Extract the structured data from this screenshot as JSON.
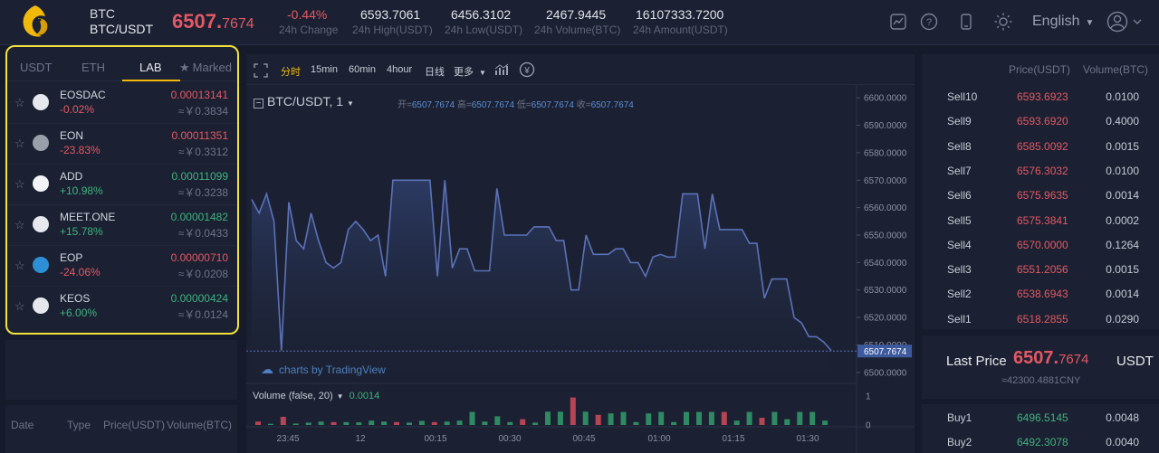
{
  "header": {
    "coin": "BTC",
    "pair": "BTC/USDT",
    "price_int": "6507.",
    "price_dec": "7674",
    "stats": [
      {
        "value": "-0.44%",
        "label": "24h Change",
        "red": true
      },
      {
        "value": "6593.7061",
        "label": "24h High(USDT)"
      },
      {
        "value": "6456.3102",
        "label": "24h Low(USDT)"
      },
      {
        "value": "2467.9445",
        "label": "24h Volume(BTC)"
      },
      {
        "value": "16107333.7200",
        "label": "24h Amount(USDT)"
      }
    ],
    "language": "English",
    "icons": [
      "chart-icon",
      "help-icon",
      "mobile-icon",
      "theme-sun-icon"
    ]
  },
  "market_tabs": {
    "usdt": "USDT",
    "eth": "ETH",
    "lab": "LAB",
    "marked": "Marked"
  },
  "coins": [
    {
      "name": "EOSDAC",
      "change": "-0.02%",
      "dir": "down",
      "price": "0.00013141",
      "cny": "≈￥0.3834"
    },
    {
      "name": "EON",
      "change": "-23.83%",
      "dir": "down",
      "price": "0.00011351",
      "cny": "≈￥0.3312"
    },
    {
      "name": "ADD",
      "change": "+10.98%",
      "dir": "up",
      "price": "0.00011099",
      "cny": "≈￥0.3238"
    },
    {
      "name": "MEET.ONE",
      "change": "+15.78%",
      "dir": "up",
      "price": "0.00001482",
      "cny": "≈￥0.0433"
    },
    {
      "name": "EOP",
      "change": "-24.06%",
      "dir": "down",
      "price": "0.00000710",
      "cny": "≈￥0.0208"
    },
    {
      "name": "KEOS",
      "change": "+6.00%",
      "dir": "up",
      "price": "0.00000424",
      "cny": "≈￥0.0124"
    }
  ],
  "trade_history": {
    "date": "Date",
    "type": "Type",
    "price": "Price(USDT)",
    "volume": "Volume(BTC)"
  },
  "chart_toolbar": {
    "timeshare": "分时",
    "m15": "15min",
    "m60": "60min",
    "h4": "4hour",
    "day": "日线",
    "more": "更多"
  },
  "chart_legend": {
    "symbol": "BTC/USDT, 1",
    "open_label": "开=",
    "open": "6507.7674",
    "high_label": "高=",
    "high": "6507.7674",
    "low_label": "低=",
    "low": "6507.7674",
    "close_label": "收=",
    "close": "6507.7674",
    "volume_title": "Volume (false, 20)",
    "volume_value": "0.0014",
    "watermark": "charts by TradingView"
  },
  "chart_data": {
    "type": "area",
    "title": "",
    "x_ticks": [
      "23:45",
      "12",
      "00:15",
      "00:30",
      "00:45",
      "01:00",
      "01:15",
      "01:30"
    ],
    "y_ticks": [
      6600,
      6590,
      6580,
      6570,
      6560,
      6550,
      6540,
      6530,
      6520,
      6510,
      6500
    ],
    "ylim": [
      6496,
      6604
    ],
    "last_price_label": "6507.7674",
    "series": [
      {
        "values": [
          6563,
          6558,
          6565,
          6555,
          6508,
          6562,
          6548,
          6545,
          6558,
          6548,
          6540,
          6538,
          6540,
          6552,
          6555,
          6552,
          6548,
          6550,
          6535,
          6570,
          6570,
          6570,
          6570,
          6570,
          6570,
          6535,
          6570,
          6538,
          6545,
          6545,
          6537,
          6537,
          6537,
          6567,
          6550,
          6550,
          6550,
          6550,
          6553,
          6553,
          6553,
          6548,
          6548,
          6530,
          6530,
          6550,
          6543,
          6543,
          6543,
          6545,
          6545,
          6540,
          6540,
          6535,
          6542,
          6543,
          6542,
          6542,
          6565,
          6565,
          6565,
          6545,
          6565,
          6552,
          6552,
          6552,
          6552,
          6547,
          6547,
          6527,
          6534,
          6534,
          6534,
          6520,
          6518,
          6513,
          6513,
          6511,
          6508
        ]
      }
    ],
    "volume": {
      "ylim": [
        0,
        1
      ],
      "y_ticks": [
        "1",
        "0"
      ],
      "bars": [
        {
          "v": 0.12,
          "c": "red"
        },
        {
          "v": 0.04,
          "c": "green"
        },
        {
          "v": 0.28,
          "c": "red"
        },
        {
          "v": 0.05,
          "c": "green"
        },
        {
          "v": 0.08,
          "c": "green"
        },
        {
          "v": 0.12,
          "c": "green"
        },
        {
          "v": 0.1,
          "c": "red"
        },
        {
          "v": 0.1,
          "c": "green"
        },
        {
          "v": 0.09,
          "c": "green"
        },
        {
          "v": 0.15,
          "c": "green"
        },
        {
          "v": 0.12,
          "c": "green"
        },
        {
          "v": 0.1,
          "c": "red"
        },
        {
          "v": 0.08,
          "c": "green"
        },
        {
          "v": 0.14,
          "c": "green"
        },
        {
          "v": 0.1,
          "c": "red"
        },
        {
          "v": 0.12,
          "c": "green"
        },
        {
          "v": 0.15,
          "c": "green"
        },
        {
          "v": 0.45,
          "c": "green"
        },
        {
          "v": 0.12,
          "c": "green"
        },
        {
          "v": 0.3,
          "c": "green"
        },
        {
          "v": 0.1,
          "c": "green"
        },
        {
          "v": 0.2,
          "c": "red"
        },
        {
          "v": 0.08,
          "c": "green"
        },
        {
          "v": 0.46,
          "c": "green"
        },
        {
          "v": 0.46,
          "c": "green"
        },
        {
          "v": 0.95,
          "c": "red"
        },
        {
          "v": 0.46,
          "c": "green"
        },
        {
          "v": 0.35,
          "c": "red"
        },
        {
          "v": 0.4,
          "c": "green"
        },
        {
          "v": 0.45,
          "c": "green"
        },
        {
          "v": 0.1,
          "c": "green"
        },
        {
          "v": 0.4,
          "c": "green"
        },
        {
          "v": 0.45,
          "c": "green"
        },
        {
          "v": 0.1,
          "c": "green"
        },
        {
          "v": 0.45,
          "c": "green"
        },
        {
          "v": 0.45,
          "c": "green"
        },
        {
          "v": 0.45,
          "c": "green"
        },
        {
          "v": 0.45,
          "c": "red"
        },
        {
          "v": 0.15,
          "c": "green"
        },
        {
          "v": 0.45,
          "c": "green"
        },
        {
          "v": 0.25,
          "c": "red"
        },
        {
          "v": 0.45,
          "c": "green"
        },
        {
          "v": 0.2,
          "c": "green"
        },
        {
          "v": 0.45,
          "c": "green"
        },
        {
          "v": 0.45,
          "c": "green"
        },
        {
          "v": 0.15,
          "c": "green"
        }
      ]
    }
  },
  "order_book": {
    "col_price": "Price(USDT)",
    "col_volume": "Volume(BTC)",
    "sells": [
      {
        "label": "Sell10",
        "price": "6593.6923",
        "amount": "0.0100"
      },
      {
        "label": "Sell9",
        "price": "6593.6920",
        "amount": "0.4000"
      },
      {
        "label": "Sell8",
        "price": "6585.0092",
        "amount": "0.0015"
      },
      {
        "label": "Sell7",
        "price": "6576.3032",
        "amount": "0.0100"
      },
      {
        "label": "Sell6",
        "price": "6575.9635",
        "amount": "0.0014"
      },
      {
        "label": "Sell5",
        "price": "6575.3841",
        "amount": "0.0002"
      },
      {
        "label": "Sell4",
        "price": "6570.0000",
        "amount": "0.1264"
      },
      {
        "label": "Sell3",
        "price": "6551.2056",
        "amount": "0.0015"
      },
      {
        "label": "Sell2",
        "price": "6538.6943",
        "amount": "0.0014"
      },
      {
        "label": "Sell1",
        "price": "6518.2855",
        "amount": "0.0290"
      }
    ],
    "last_price_label": "Last Price",
    "last_price_int": "6507.",
    "last_price_dec": "7674",
    "last_price_unit": "USDT",
    "last_price_cny": "≈42300.4881CNY",
    "buys": [
      {
        "label": "Buy1",
        "price": "6496.5145",
        "amount": "0.0048"
      },
      {
        "label": "Buy2",
        "price": "6492.3078",
        "amount": "0.0040"
      }
    ]
  },
  "colors": {
    "red": "#e45864",
    "green": "#3fb27f",
    "accent": "#f0b90b",
    "highlight_box": "#f2e23a",
    "line": "#5b72b8"
  }
}
